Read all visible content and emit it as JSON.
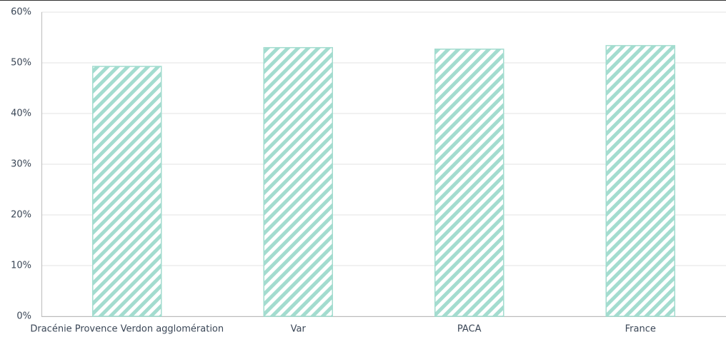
{
  "chart_data": {
    "type": "bar",
    "categories": [
      "Dracénie Provence Verdon agglomération",
      "Var",
      "PACA",
      "France"
    ],
    "values": [
      49.3,
      53.0,
      52.7,
      53.4
    ],
    "color": "#a3dccf",
    "ylim": [
      0,
      60
    ],
    "yticks": [
      {
        "value": 0,
        "label": "0%"
      },
      {
        "value": 10,
        "label": "10%"
      },
      {
        "value": 20,
        "label": "20%"
      },
      {
        "value": 30,
        "label": "30%"
      },
      {
        "value": 40,
        "label": "40%"
      },
      {
        "value": 50,
        "label": "50%"
      },
      {
        "value": 60,
        "label": "60%"
      }
    ],
    "grid": true
  }
}
